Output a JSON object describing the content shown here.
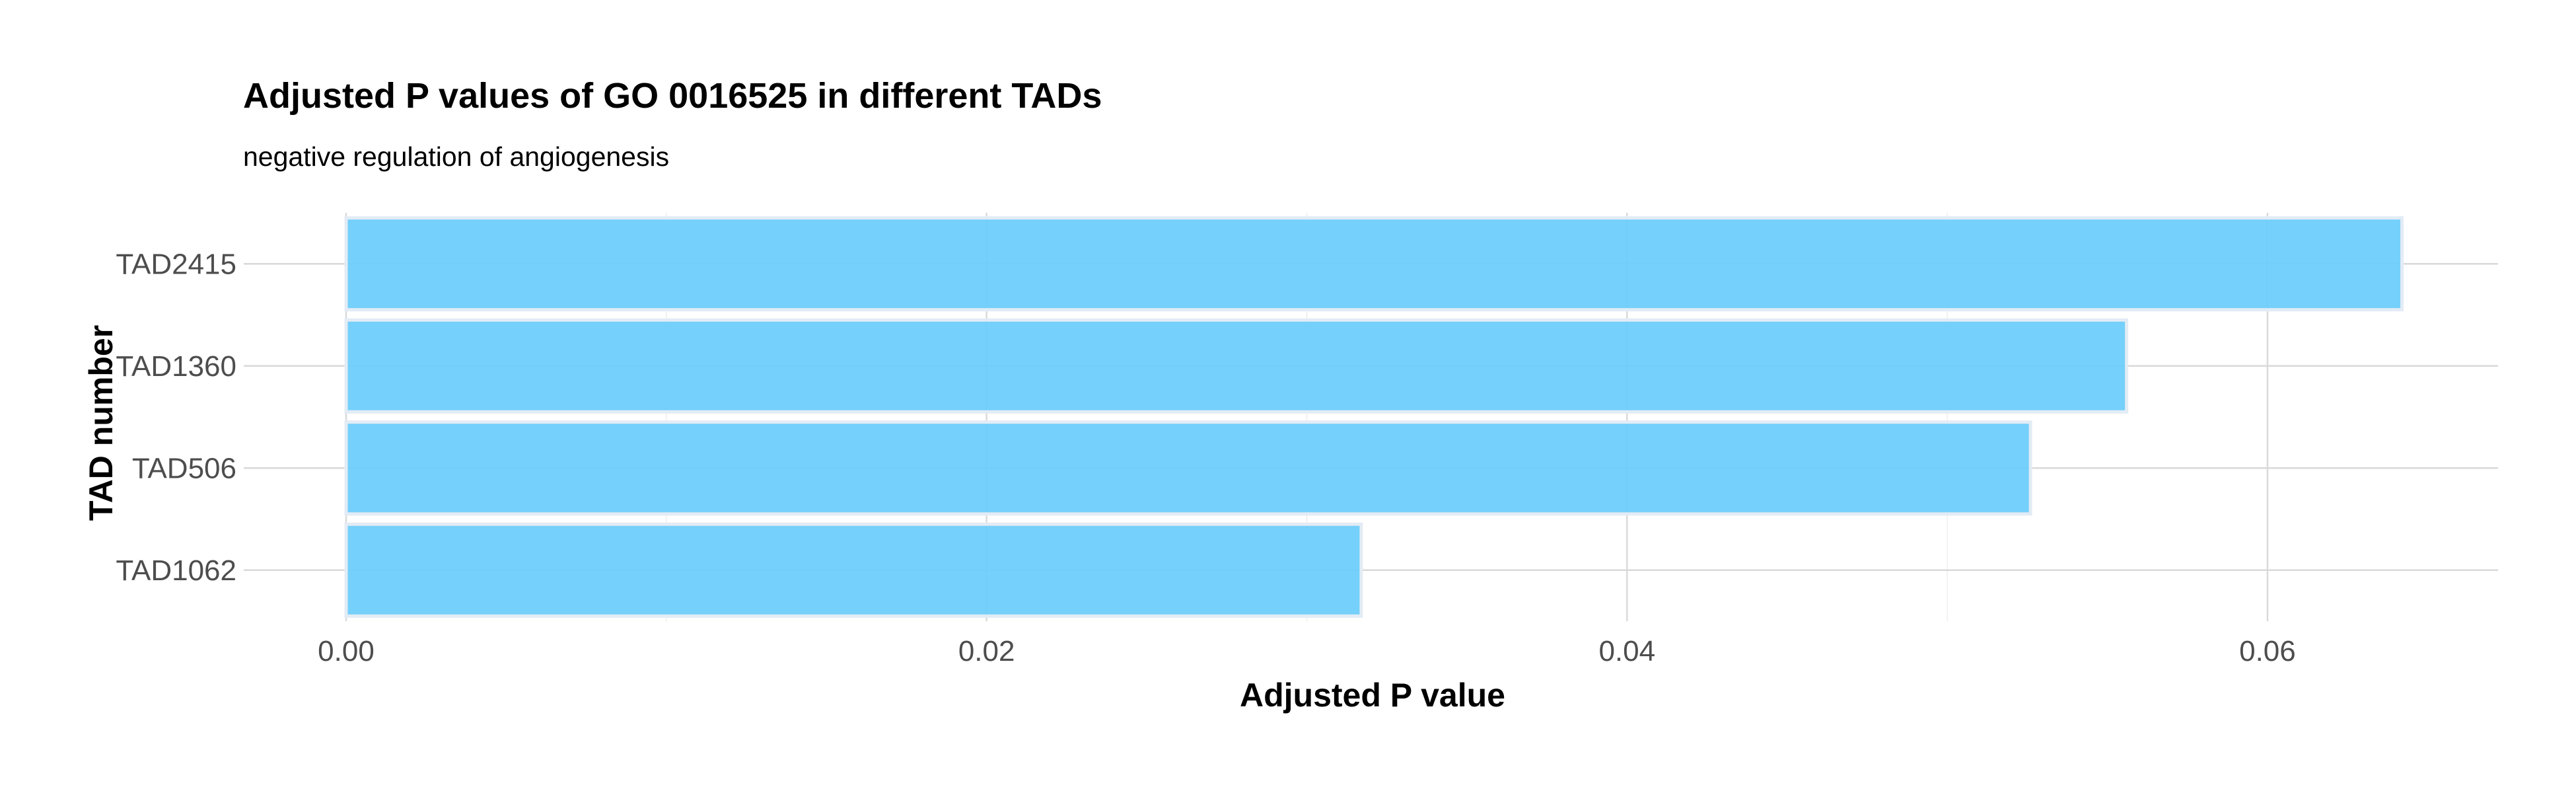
{
  "chart_data": {
    "type": "bar",
    "orientation": "horizontal",
    "title": "Adjusted P values of GO 0016525 in different TADs",
    "subtitle": "negative regulation of angiogenesis",
    "xlabel": "Adjusted P value",
    "ylabel": "TAD number",
    "categories": [
      "TAD2415",
      "TAD1360",
      "TAD506",
      "TAD1062"
    ],
    "values": [
      0.0642,
      0.0556,
      0.0526,
      0.0317
    ],
    "xlim": [
      0,
      0.0672
    ],
    "x_ticks": [
      0,
      0.02,
      0.04,
      0.06
    ],
    "x_tick_labels": [
      "0.00",
      "0.02",
      "0.04",
      "0.06"
    ],
    "grid": true,
    "legend": "none",
    "bar_color": "#6ecdfb"
  }
}
